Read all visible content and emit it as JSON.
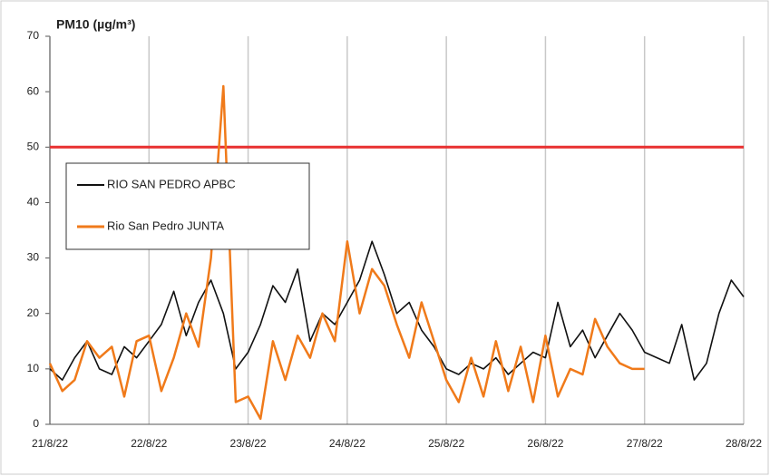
{
  "chart_data": {
    "type": "line",
    "title": "PM10 (µg/m³)",
    "x": [
      0,
      0.125,
      0.25,
      0.375,
      0.5,
      0.625,
      0.75,
      0.875,
      1,
      1.125,
      1.25,
      1.375,
      1.5,
      1.625,
      1.75,
      1.875,
      2,
      2.125,
      2.25,
      2.375,
      2.5,
      2.625,
      2.75,
      2.875,
      3,
      3.125,
      3.25,
      3.375,
      3.5,
      3.625,
      3.75,
      3.875,
      4,
      4.125,
      4.25,
      4.375,
      4.5,
      4.625,
      4.75,
      4.875,
      5,
      5.125,
      5.25,
      5.375,
      5.5,
      5.625,
      5.75,
      5.875,
      6,
      6.125,
      6.25,
      6.375,
      6.5,
      6.625,
      6.75,
      6.875,
      7
    ],
    "series": [
      {
        "name": "RIO SAN PEDRO APBC",
        "color": "#111111",
        "values": [
          10,
          8,
          12,
          15,
          10,
          9,
          14,
          12,
          15,
          18,
          24,
          16,
          22,
          26,
          20,
          10,
          13,
          18,
          25,
          22,
          28,
          15,
          20,
          18,
          22,
          26,
          33,
          27,
          20,
          22,
          17,
          14,
          10,
          9,
          11,
          10,
          12,
          9,
          11,
          13,
          12,
          22,
          14,
          17,
          12,
          16,
          20,
          17,
          13,
          12,
          11,
          18,
          8,
          11,
          20,
          26,
          23
        ]
      },
      {
        "name": "Rio San Pedro JUNTA",
        "color": "#f07a1a",
        "values": [
          11,
          6,
          8,
          15,
          12,
          14,
          5,
          15,
          16,
          6,
          12,
          20,
          14,
          30,
          61,
          4,
          5,
          1,
          15,
          8,
          16,
          12,
          20,
          15,
          33,
          20,
          28,
          25,
          18,
          12,
          22,
          15,
          8,
          4,
          12,
          5,
          15,
          6,
          14,
          4,
          16,
          5,
          10,
          9,
          19,
          14,
          11,
          10,
          10,
          null,
          null,
          null,
          null,
          null,
          null,
          null,
          null
        ]
      }
    ],
    "reference_line": {
      "value": 50,
      "color": "#e83030"
    },
    "xlim": [
      0,
      7
    ],
    "xticks": [
      {
        "value": 0,
        "label": "21/8/22"
      },
      {
        "value": 1,
        "label": "22/8/22"
      },
      {
        "value": 2,
        "label": "23/8/22"
      },
      {
        "value": 3,
        "label": "24/8/22"
      },
      {
        "value": 4,
        "label": "25/8/22"
      },
      {
        "value": 5,
        "label": "26/8/22"
      },
      {
        "value": 6,
        "label": "27/8/22"
      },
      {
        "value": 7,
        "label": "28/8/22"
      }
    ],
    "ylim": [
      0,
      70
    ],
    "yticks": [
      0,
      10,
      20,
      30,
      40,
      50,
      60,
      70
    ],
    "grid": "x",
    "legend": "upper left"
  }
}
